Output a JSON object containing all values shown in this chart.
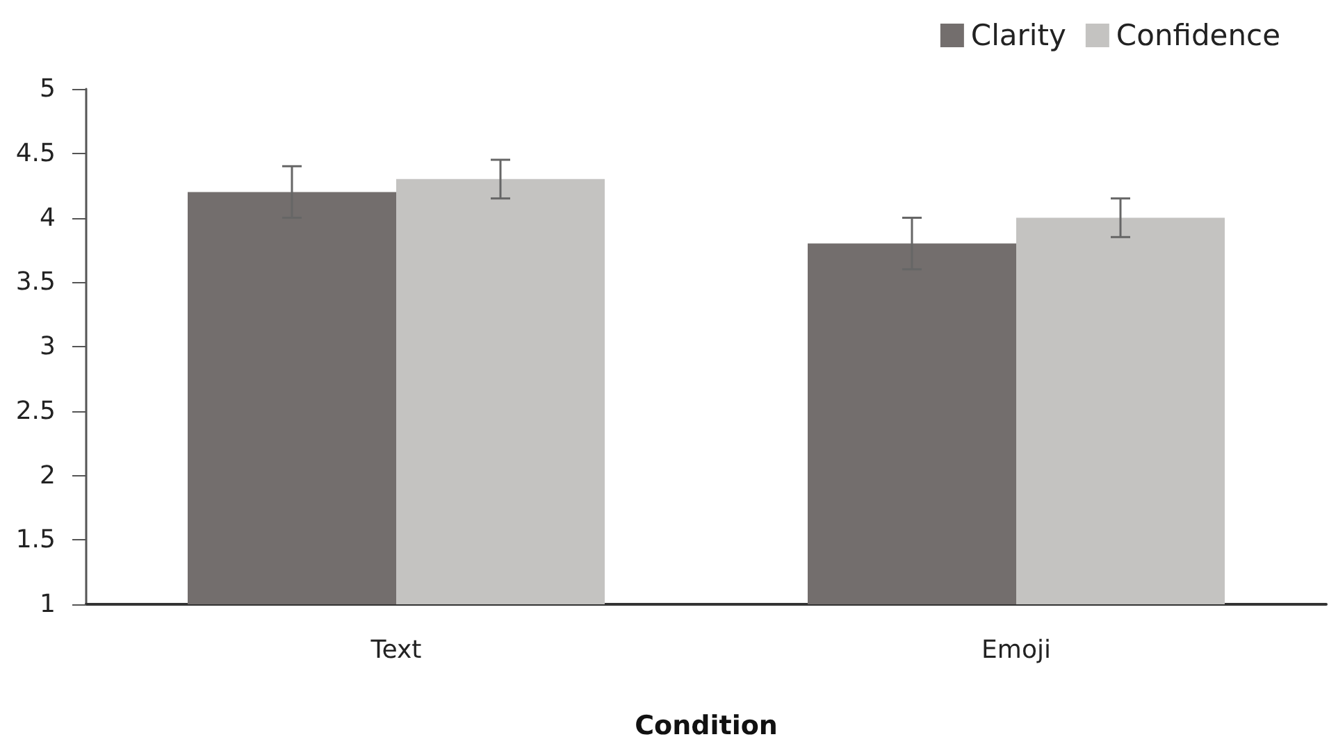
{
  "chart_data": {
    "type": "bar",
    "xlabel": "Condition",
    "categories": [
      "Text",
      "Emoji"
    ],
    "series": [
      {
        "name": "Clarity",
        "color": "#736e6d",
        "values": [
          4.2,
          3.8
        ],
        "errors": [
          0.2,
          0.2
        ]
      },
      {
        "name": "Confidence",
        "color": "#c4c3c1",
        "values": [
          4.3,
          4.0
        ],
        "errors": [
          0.15,
          0.15
        ]
      }
    ],
    "ylim": [
      1,
      5
    ],
    "yticks": [
      1,
      1.5,
      2,
      2.5,
      3,
      3.5,
      4,
      4.5,
      5
    ],
    "grid": false,
    "legend": "top right"
  }
}
